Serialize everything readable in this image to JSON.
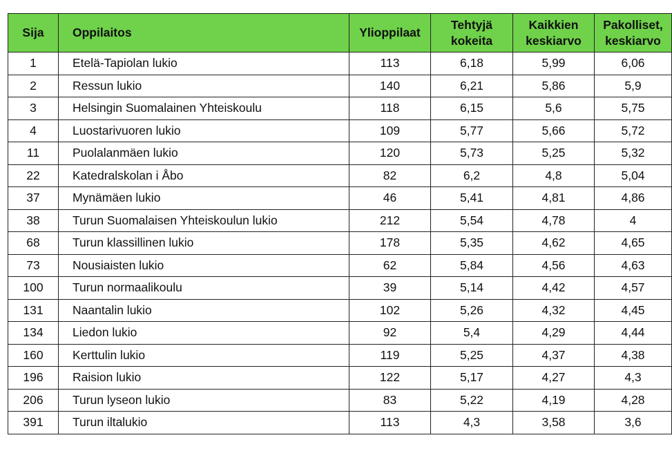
{
  "table": {
    "headers": {
      "rank": "Sija",
      "school": "Oppilaitos",
      "graduates": "Ylioppilaat",
      "exams_line1": "Tehtyjä",
      "exams_line2": "kokeita",
      "avg_all_line1": "Kaikkien",
      "avg_all_line2": "keskiarvo",
      "avg_mand_line1": "Pakolliset,",
      "avg_mand_line2": "keskiarvo"
    },
    "rows": [
      {
        "rank": "1",
        "school": "Etelä-Tapiolan lukio",
        "graduates": "113",
        "exams": "6,18",
        "avg_all": "5,99",
        "avg_mand": "6,06"
      },
      {
        "rank": "2",
        "school": "Ressun lukio",
        "graduates": "140",
        "exams": "6,21",
        "avg_all": "5,86",
        "avg_mand": "5,9"
      },
      {
        "rank": "3",
        "school": "Helsingin Suomalainen Yhteiskoulu",
        "graduates": "118",
        "exams": "6,15",
        "avg_all": "5,6",
        "avg_mand": "5,75"
      },
      {
        "rank": "4",
        "school": "Luostarivuoren lukio",
        "graduates": "109",
        "exams": "5,77",
        "avg_all": "5,66",
        "avg_mand": "5,72"
      },
      {
        "rank": "11",
        "school": "Puolalanmäen lukio",
        "graduates": "120",
        "exams": "5,73",
        "avg_all": "5,25",
        "avg_mand": "5,32"
      },
      {
        "rank": "22",
        "school": "Katedralskolan i Åbo",
        "graduates": "82",
        "exams": "6,2",
        "avg_all": "4,8",
        "avg_mand": "5,04"
      },
      {
        "rank": "37",
        "school": "Mynämäen lukio",
        "graduates": "46",
        "exams": "5,41",
        "avg_all": "4,81",
        "avg_mand": "4,86"
      },
      {
        "rank": "38",
        "school": "Turun Suomalaisen Yhteiskoulun lukio",
        "graduates": "212",
        "exams": "5,54",
        "avg_all": "4,78",
        "avg_mand": "4"
      },
      {
        "rank": "68",
        "school": "Turun klassillinen lukio",
        "graduates": "178",
        "exams": "5,35",
        "avg_all": "4,62",
        "avg_mand": "4,65"
      },
      {
        "rank": "73",
        "school": "Nousiaisten lukio",
        "graduates": "62",
        "exams": "5,84",
        "avg_all": "4,56",
        "avg_mand": "4,63"
      },
      {
        "rank": "100",
        "school": "Turun normaalikoulu",
        "graduates": "39",
        "exams": "5,14",
        "avg_all": "4,42",
        "avg_mand": "4,57"
      },
      {
        "rank": "131",
        "school": "Naantalin lukio",
        "graduates": "102",
        "exams": "5,26",
        "avg_all": "4,32",
        "avg_mand": "4,45"
      },
      {
        "rank": "134",
        "school": "Liedon lukio",
        "graduates": "92",
        "exams": "5,4",
        "avg_all": "4,29",
        "avg_mand": "4,44"
      },
      {
        "rank": "160",
        "school": "Kerttulin lukio",
        "graduates": "119",
        "exams": "5,25",
        "avg_all": "4,37",
        "avg_mand": "4,38"
      },
      {
        "rank": "196",
        "school": "Raision lukio",
        "graduates": "122",
        "exams": "5,17",
        "avg_all": "4,27",
        "avg_mand": "4,3"
      },
      {
        "rank": "206",
        "school": "Turun lyseon lukio",
        "graduates": "83",
        "exams": "5,22",
        "avg_all": "4,19",
        "avg_mand": "4,28"
      },
      {
        "rank": "391",
        "school": "Turun iltalukio",
        "graduates": "113",
        "exams": "4,3",
        "avg_all": "3,58",
        "avg_mand": "3,6"
      }
    ],
    "colors": {
      "header_bg": "#6fd24a",
      "border": "#222222",
      "text": "#111111"
    }
  }
}
